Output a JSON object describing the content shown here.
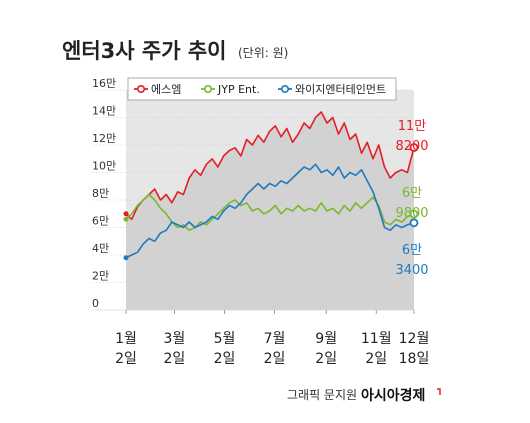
{
  "chart_data": {
    "type": "line",
    "title": "엔터3사 주가 추이",
    "unit_label": "(단위: 원)",
    "y_tick_labels": [
      "16만",
      "14만",
      "12만",
      "10만",
      "8만",
      "6만",
      "4만",
      "2만",
      "0"
    ],
    "y_ticks": [
      160000,
      140000,
      120000,
      100000,
      80000,
      60000,
      40000,
      20000,
      0
    ],
    "ylim": [
      0,
      160000
    ],
    "x_tick_labels": [
      {
        "top": "1월",
        "bottom": "2일"
      },
      {
        "top": "3월",
        "bottom": "2일"
      },
      {
        "top": "5월",
        "bottom": "2일"
      },
      {
        "top": "7월",
        "bottom": "2일"
      },
      {
        "top": "9월",
        "bottom": "2일"
      },
      {
        "top": "11월",
        "bottom": "2일"
      },
      {
        "top": "12월",
        "bottom": "18일"
      }
    ],
    "x_tick_days": [
      0,
      59,
      120,
      181,
      244,
      305,
      351
    ],
    "x_range_days": [
      0,
      351
    ],
    "legend_position": "top",
    "series": [
      {
        "name": "에스엠",
        "color": "#e41e26",
        "end_label_line1": "11만",
        "end_label_line2": "8200",
        "points": [
          [
            0,
            70000
          ],
          [
            7,
            66000
          ],
          [
            14,
            75000
          ],
          [
            21,
            80000
          ],
          [
            28,
            84000
          ],
          [
            35,
            88000
          ],
          [
            42,
            80000
          ],
          [
            49,
            84000
          ],
          [
            56,
            78000
          ],
          [
            63,
            86000
          ],
          [
            70,
            84000
          ],
          [
            77,
            96000
          ],
          [
            84,
            102000
          ],
          [
            91,
            98000
          ],
          [
            98,
            106000
          ],
          [
            105,
            110000
          ],
          [
            112,
            104000
          ],
          [
            119,
            112000
          ],
          [
            126,
            116000
          ],
          [
            133,
            118000
          ],
          [
            140,
            112000
          ],
          [
            147,
            124000
          ],
          [
            154,
            120000
          ],
          [
            161,
            127000
          ],
          [
            168,
            122000
          ],
          [
            175,
            130000
          ],
          [
            182,
            134000
          ],
          [
            189,
            126000
          ],
          [
            196,
            132000
          ],
          [
            203,
            122000
          ],
          [
            210,
            128000
          ],
          [
            217,
            136000
          ],
          [
            224,
            132000
          ],
          [
            231,
            140000
          ],
          [
            238,
            144000
          ],
          [
            245,
            136000
          ],
          [
            252,
            140000
          ],
          [
            259,
            128000
          ],
          [
            266,
            136000
          ],
          [
            273,
            124000
          ],
          [
            280,
            128000
          ],
          [
            287,
            114000
          ],
          [
            294,
            122000
          ],
          [
            301,
            110000
          ],
          [
            308,
            120000
          ],
          [
            315,
            104000
          ],
          [
            322,
            96000
          ],
          [
            329,
            100000
          ],
          [
            336,
            102000
          ],
          [
            343,
            100000
          ],
          [
            351,
            118200
          ]
        ]
      },
      {
        "name": "JYP Ent.",
        "color": "#7ab82e",
        "end_label_line1": "6만",
        "end_label_line2": "9800",
        "points": [
          [
            0,
            66000
          ],
          [
            7,
            70000
          ],
          [
            14,
            76000
          ],
          [
            21,
            80000
          ],
          [
            28,
            84000
          ],
          [
            35,
            80000
          ],
          [
            42,
            74000
          ],
          [
            49,
            70000
          ],
          [
            56,
            64000
          ],
          [
            63,
            60000
          ],
          [
            70,
            62000
          ],
          [
            77,
            58000
          ],
          [
            84,
            60000
          ],
          [
            91,
            64000
          ],
          [
            98,
            62000
          ],
          [
            105,
            66000
          ],
          [
            112,
            70000
          ],
          [
            119,
            74000
          ],
          [
            126,
            78000
          ],
          [
            133,
            80000
          ],
          [
            140,
            76000
          ],
          [
            147,
            78000
          ],
          [
            154,
            72000
          ],
          [
            161,
            74000
          ],
          [
            168,
            70000
          ],
          [
            175,
            72000
          ],
          [
            182,
            76000
          ],
          [
            189,
            70000
          ],
          [
            196,
            74000
          ],
          [
            203,
            72000
          ],
          [
            210,
            76000
          ],
          [
            217,
            72000
          ],
          [
            224,
            74000
          ],
          [
            231,
            72000
          ],
          [
            238,
            78000
          ],
          [
            245,
            72000
          ],
          [
            252,
            74000
          ],
          [
            259,
            70000
          ],
          [
            266,
            76000
          ],
          [
            273,
            72000
          ],
          [
            280,
            78000
          ],
          [
            287,
            74000
          ],
          [
            294,
            78000
          ],
          [
            301,
            82000
          ],
          [
            308,
            76000
          ],
          [
            315,
            64000
          ],
          [
            322,
            62000
          ],
          [
            329,
            66000
          ],
          [
            336,
            64000
          ],
          [
            343,
            68000
          ],
          [
            351,
            69800
          ]
        ]
      },
      {
        "name": "와이지엔터테인먼트",
        "color": "#1f7bc1",
        "end_label_line1": "6만",
        "end_label_line2": "3400",
        "points": [
          [
            0,
            38000
          ],
          [
            7,
            40000
          ],
          [
            14,
            42000
          ],
          [
            21,
            48000
          ],
          [
            28,
            52000
          ],
          [
            35,
            50000
          ],
          [
            42,
            56000
          ],
          [
            49,
            58000
          ],
          [
            56,
            64000
          ],
          [
            63,
            62000
          ],
          [
            70,
            60000
          ],
          [
            77,
            64000
          ],
          [
            84,
            60000
          ],
          [
            91,
            62000
          ],
          [
            98,
            64000
          ],
          [
            105,
            68000
          ],
          [
            112,
            66000
          ],
          [
            119,
            72000
          ],
          [
            126,
            76000
          ],
          [
            133,
            74000
          ],
          [
            140,
            78000
          ],
          [
            147,
            84000
          ],
          [
            154,
            88000
          ],
          [
            161,
            92000
          ],
          [
            168,
            88000
          ],
          [
            175,
            92000
          ],
          [
            182,
            90000
          ],
          [
            189,
            94000
          ],
          [
            196,
            92000
          ],
          [
            203,
            96000
          ],
          [
            210,
            100000
          ],
          [
            217,
            104000
          ],
          [
            224,
            102000
          ],
          [
            231,
            106000
          ],
          [
            238,
            100000
          ],
          [
            245,
            102000
          ],
          [
            252,
            98000
          ],
          [
            259,
            104000
          ],
          [
            266,
            96000
          ],
          [
            273,
            100000
          ],
          [
            280,
            98000
          ],
          [
            287,
            102000
          ],
          [
            294,
            94000
          ],
          [
            301,
            86000
          ],
          [
            308,
            74000
          ],
          [
            315,
            60000
          ],
          [
            322,
            58000
          ],
          [
            329,
            62000
          ],
          [
            336,
            60000
          ],
          [
            343,
            62000
          ],
          [
            351,
            63400
          ]
        ]
      }
    ]
  },
  "credit": {
    "text": "그래픽 문지원",
    "brand": "아시아경제"
  }
}
